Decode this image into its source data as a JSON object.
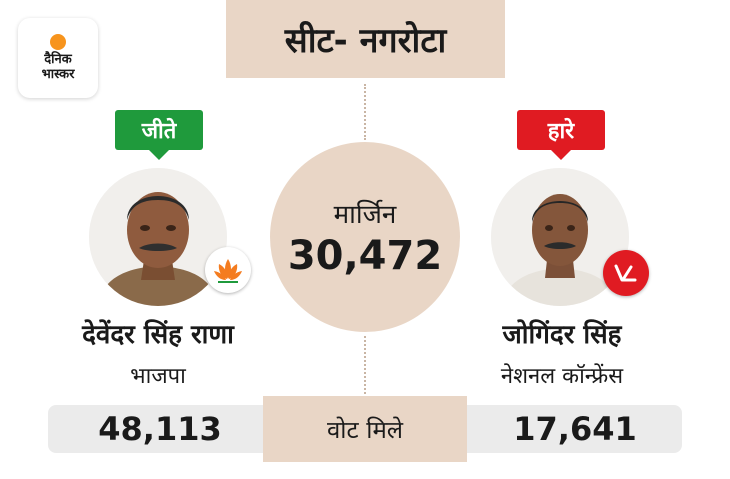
{
  "brand": {
    "logo_line1": "दैनिक",
    "logo_line2": "भास्कर",
    "accent": "#f7941d"
  },
  "seat": {
    "title": "सीट- नगरोटा"
  },
  "margin": {
    "label": "मार्जिन",
    "value": "30,472"
  },
  "winner": {
    "status": "जीते",
    "name": "देवेंदर सिंह राणा",
    "party": "भाजपा",
    "votes": "48,113",
    "party_icon": "lotus-icon",
    "status_color": "#1f9a3c"
  },
  "loser": {
    "status": "हारे",
    "name": "जोगिंदर सिंह",
    "party": "नेशनल कॉन्फ्रेंस",
    "votes": "17,641",
    "party_icon": "plough-icon",
    "status_color": "#e01b22"
  },
  "votes_label": "वोट मिले",
  "colors": {
    "panel": "#e9d6c6",
    "bar": "#ebebeb"
  }
}
